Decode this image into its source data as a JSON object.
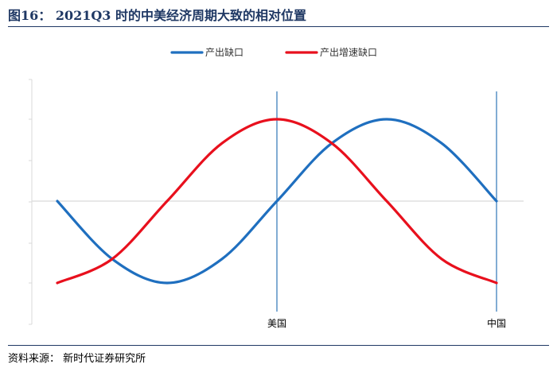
{
  "header": {
    "title": "图16：  2021Q3 时的中美经济周期大致的相对位置"
  },
  "footer": {
    "source": "资料来源：  新时代证券研究所"
  },
  "chart_data": {
    "type": "line",
    "title": "图16：  2021Q3 时的中美经济周期大致的相对位置",
    "xlabel": "",
    "ylabel": "",
    "legend": "top-center",
    "grid": false,
    "x_range": [
      0,
      4
    ],
    "ylim": [
      -1,
      1
    ],
    "markers": [
      {
        "label": "美国",
        "x": 2
      },
      {
        "label": "中国",
        "x": 4
      }
    ],
    "series": [
      {
        "name": "产出缺口",
        "color": "#1f6fbf",
        "x": [
          0,
          0.5,
          1,
          1.5,
          2,
          2.5,
          3,
          3.5,
          4
        ],
        "values": [
          0,
          -0.707,
          -1,
          -0.707,
          0,
          0.707,
          1,
          0.707,
          0
        ]
      },
      {
        "name": "产出增速缺口",
        "color": "#e8101d",
        "x": [
          0,
          0.5,
          1,
          1.5,
          2,
          2.5,
          3,
          3.5,
          4
        ],
        "values": [
          -1,
          -0.707,
          0,
          0.707,
          1,
          0.707,
          0,
          -0.707,
          -1
        ]
      }
    ]
  }
}
